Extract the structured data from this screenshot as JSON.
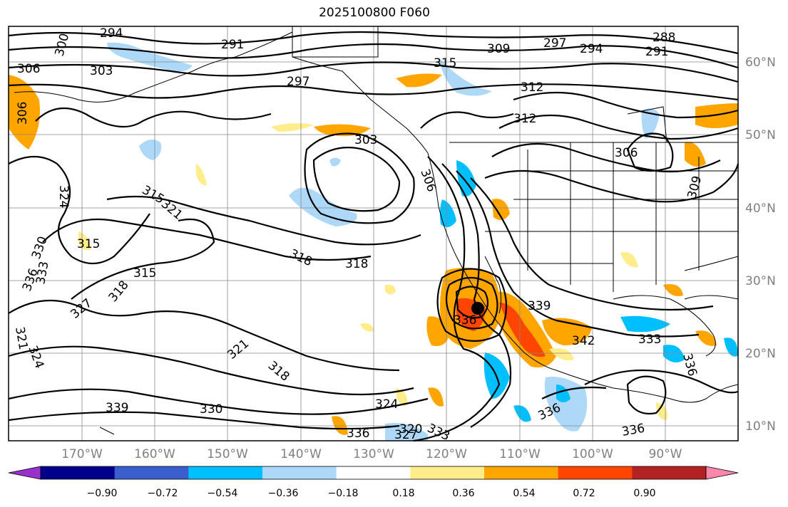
{
  "title": "2025100800 F060",
  "longitude_labels": [
    "170°W",
    "160°W",
    "150°W",
    "140°W",
    "130°W",
    "120°W",
    "110°W",
    "100°W",
    "90°W"
  ],
  "latitude_labels": [
    "60°N",
    "50°N",
    "40°N",
    "30°N",
    "20°N",
    "10°N"
  ],
  "colorbar": {
    "colors": [
      "#9932cc",
      "#00008b",
      "#3a5fcd",
      "#00bfff",
      "#add8f8",
      "#ffffff",
      "#ffec8b",
      "#ffa500",
      "#ff4500",
      "#b22222",
      "#ff88aa"
    ],
    "tick_labels": [
      "−0.90",
      "−0.72",
      "−0.54",
      "−0.36",
      "−0.18",
      "0.18",
      "0.36",
      "0.54",
      "0.72",
      "0.90"
    ]
  },
  "contour_labels": [
    "294",
    "291",
    "300",
    "306",
    "303",
    "297",
    "315",
    "309",
    "297",
    "294",
    "288",
    "291",
    "312",
    "312",
    "306",
    "303",
    "306",
    "309",
    "306",
    "324",
    "315",
    "321",
    "330",
    "333",
    "336",
    "315",
    "318",
    "327",
    "315",
    "318",
    "318",
    "336",
    "339",
    "342",
    "333",
    "336",
    "321",
    "324",
    "321",
    "318",
    "339",
    "330",
    "324",
    "336",
    "327",
    "320",
    "333",
    "336",
    "336"
  ]
}
